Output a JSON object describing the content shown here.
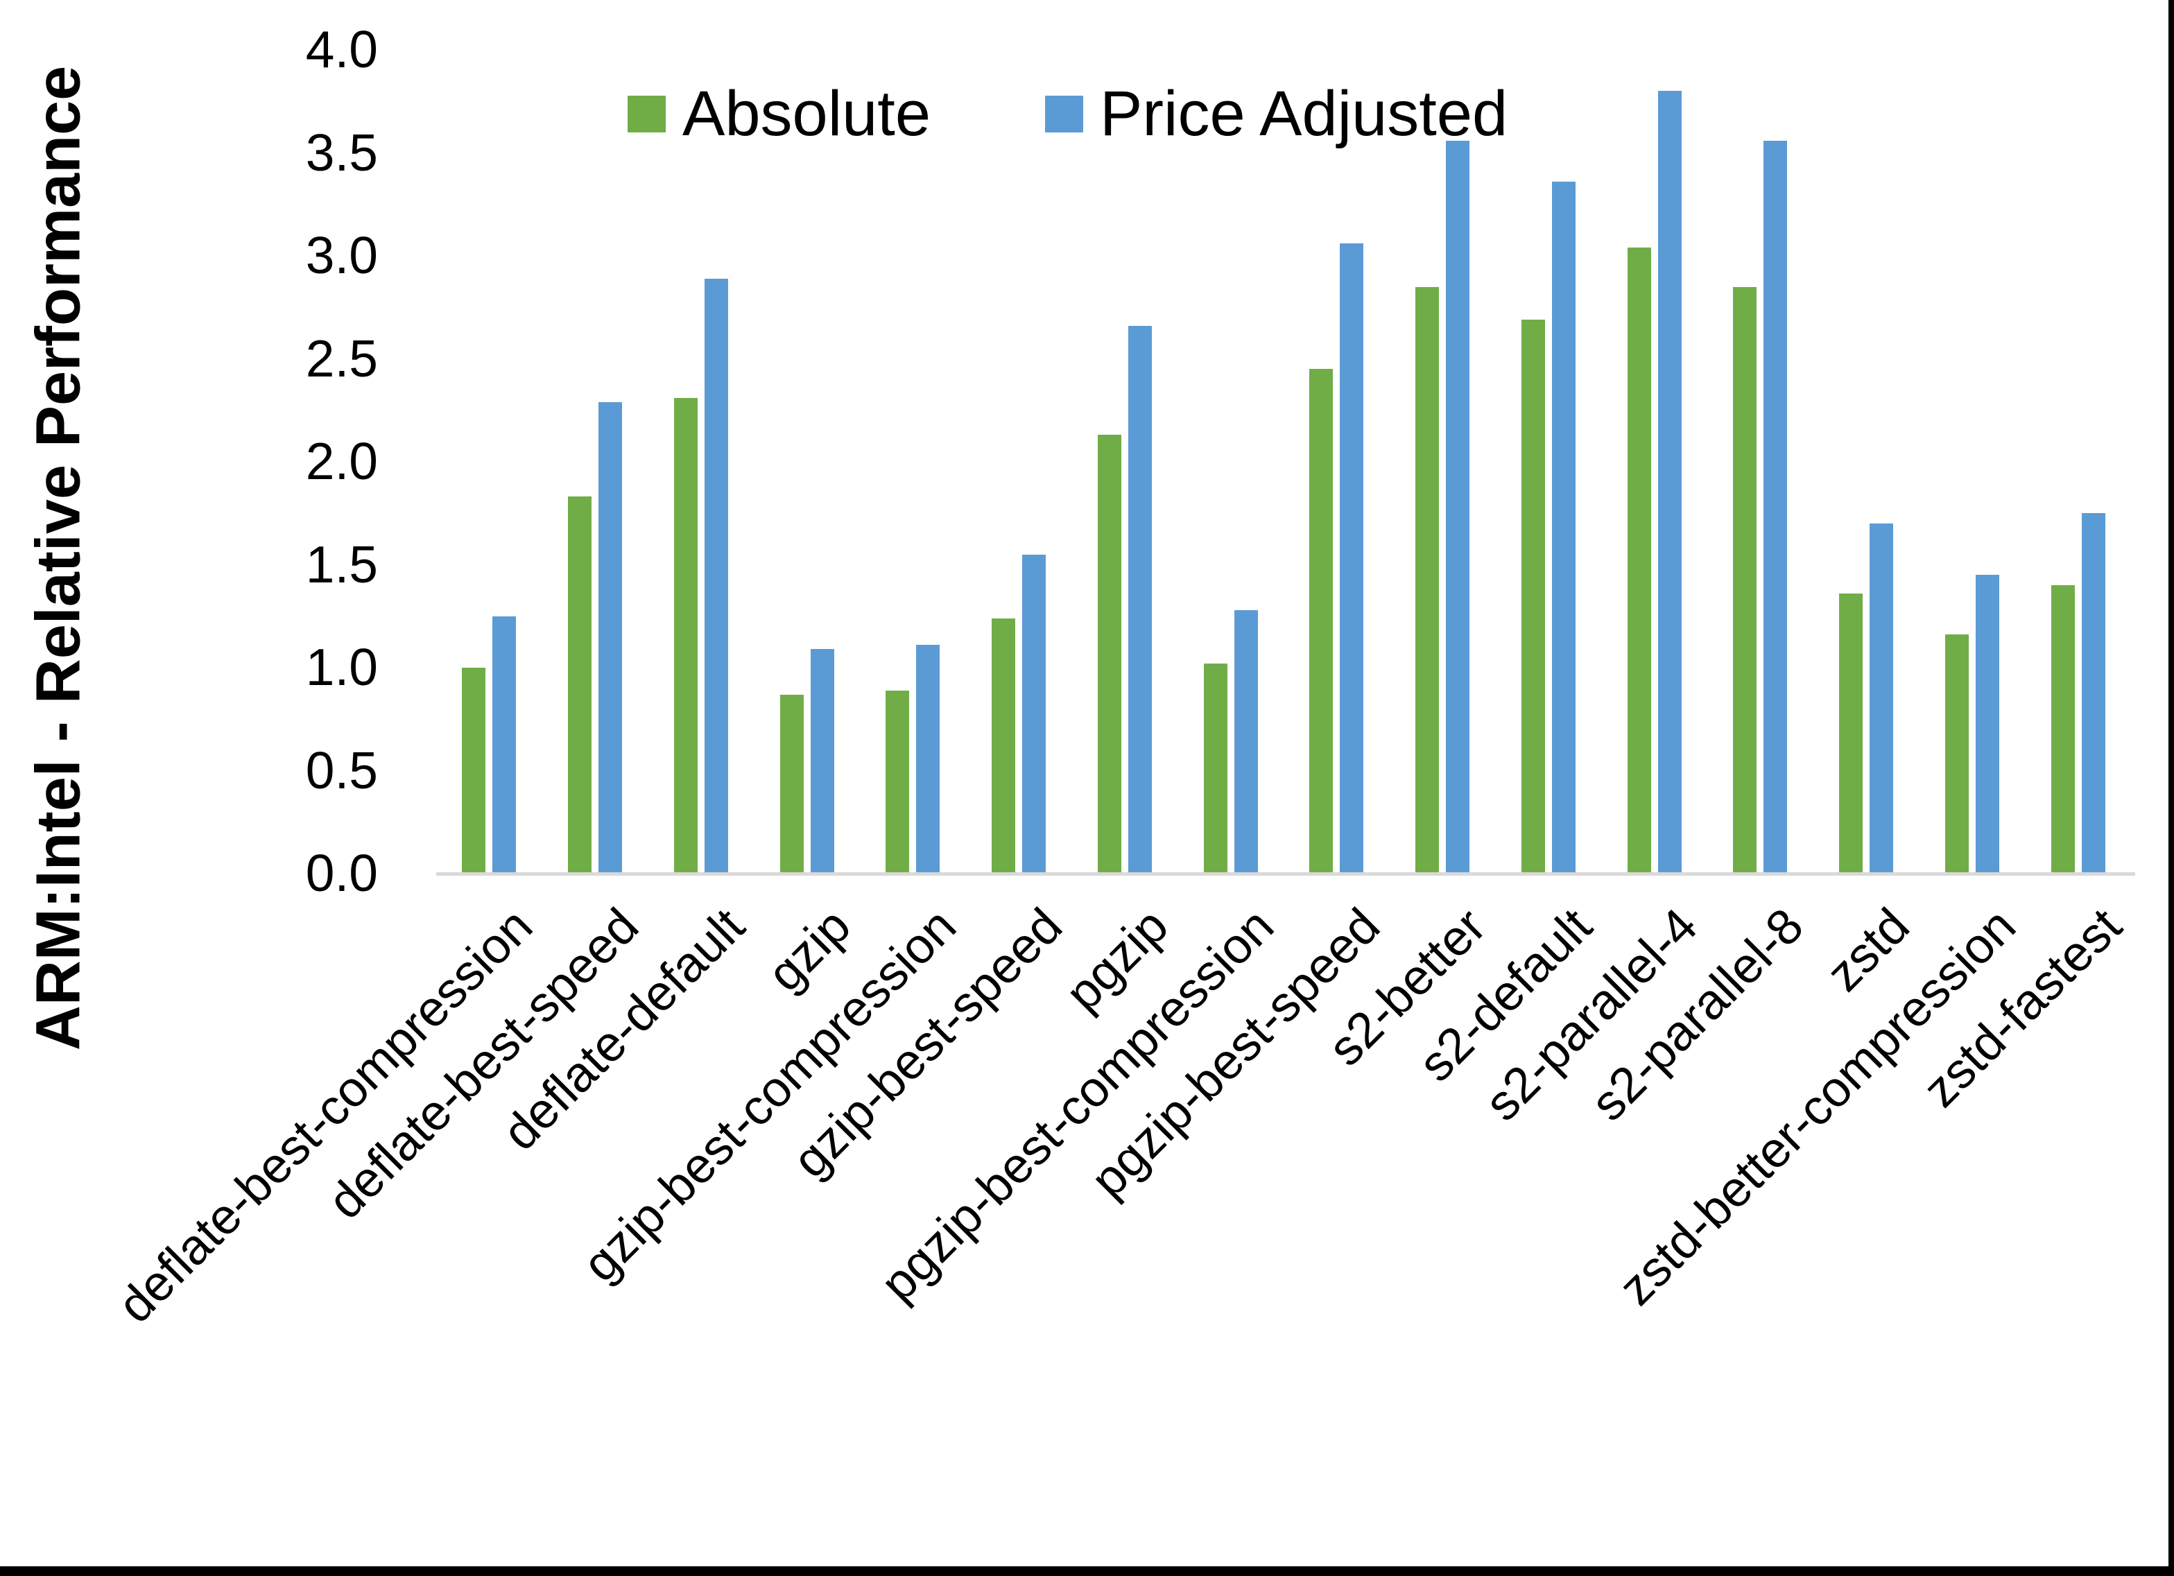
{
  "chart_data": {
    "type": "bar",
    "title": "",
    "xlabel": "",
    "ylabel": "ARM:Intel - Relative Performance",
    "ylim": [
      0.0,
      4.0
    ],
    "ytick_step": 0.5,
    "ytick_labels": [
      "4.0",
      "3.5",
      "3.0",
      "2.5",
      "2.0",
      "1.5",
      "1.0",
      "0.5",
      "0.0"
    ],
    "grid": false,
    "legend_position": "top-center",
    "categories": [
      "deflate-best-compression",
      "deflate-best-speed",
      "deflate-default",
      "gzip",
      "gzip-best-compression",
      "gzip-best-speed",
      "pgzip",
      "pgzip-best-compression",
      "pgzip-best-speed",
      "s2-better",
      "s2-default",
      "s2-parallel-4",
      "s2-parallel-8",
      "zstd",
      "zstd-better-compression",
      "zstd-fastest"
    ],
    "series": [
      {
        "name": "Absolute",
        "color": "#70AD47",
        "values": [
          1.0,
          1.83,
          2.31,
          0.87,
          0.89,
          1.24,
          2.13,
          1.02,
          2.45,
          2.85,
          2.69,
          3.04,
          2.85,
          1.36,
          1.16,
          1.4
        ]
      },
      {
        "name": "Price Adjusted",
        "color": "#5B9BD5",
        "values": [
          1.25,
          2.29,
          2.89,
          1.09,
          1.11,
          1.55,
          2.66,
          1.28,
          3.06,
          3.56,
          3.36,
          3.8,
          3.56,
          1.7,
          1.45,
          1.75
        ]
      }
    ]
  },
  "colors": {
    "background": "#FFFFFF",
    "axis_line": "#D9D9D9",
    "text": "#000000",
    "page_border": "#000000"
  }
}
